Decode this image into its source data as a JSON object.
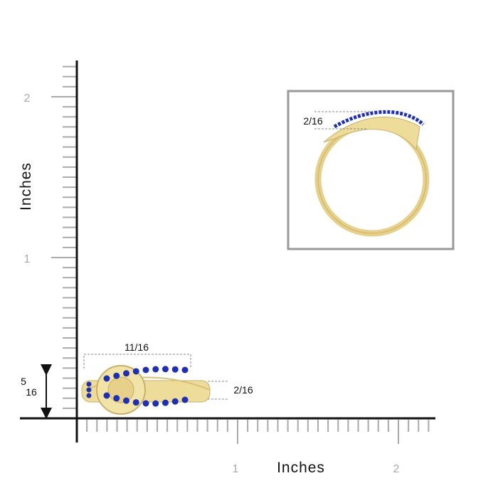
{
  "y_axis": {
    "title": "Inches",
    "labels": [
      "1",
      "2"
    ]
  },
  "x_axis": {
    "title": "Inches",
    "labels": [
      "1",
      "2"
    ]
  },
  "dimensions": {
    "width": "11/16",
    "height": "2/16",
    "depth_numerator": "5",
    "depth_denominator": "16",
    "inset_height": "2/16"
  }
}
